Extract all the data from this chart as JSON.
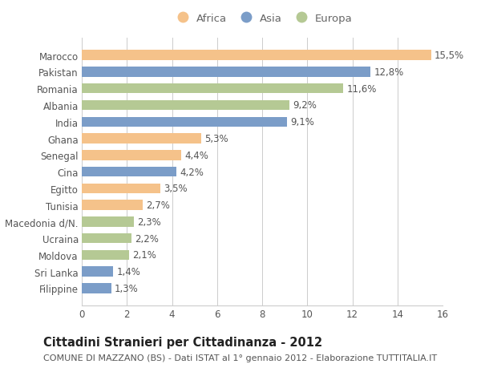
{
  "countries": [
    "Marocco",
    "Pakistan",
    "Romania",
    "Albania",
    "India",
    "Ghana",
    "Senegal",
    "Cina",
    "Egitto",
    "Tunisia",
    "Macedonia d/N.",
    "Ucraina",
    "Moldova",
    "Sri Lanka",
    "Filippine"
  ],
  "values": [
    15.5,
    12.8,
    11.6,
    9.2,
    9.1,
    5.3,
    4.4,
    4.2,
    3.5,
    2.7,
    2.3,
    2.2,
    2.1,
    1.4,
    1.3
  ],
  "continents": [
    "Africa",
    "Asia",
    "Europa",
    "Europa",
    "Asia",
    "Africa",
    "Africa",
    "Asia",
    "Africa",
    "Africa",
    "Europa",
    "Europa",
    "Europa",
    "Asia",
    "Asia"
  ],
  "colors": {
    "Africa": "#F5C28A",
    "Asia": "#7B9DC8",
    "Europa": "#B5C994"
  },
  "legend_order": [
    "Africa",
    "Asia",
    "Europa"
  ],
  "xlim": [
    0,
    16
  ],
  "xticks": [
    0,
    2,
    4,
    6,
    8,
    10,
    12,
    14,
    16
  ],
  "title_bold": "Cittadini Stranieri per Cittadinanza - 2012",
  "subtitle": "COMUNE DI MAZZANO (BS) - Dati ISTAT al 1° gennaio 2012 - Elaborazione TUTTITALIA.IT",
  "background_color": "#ffffff",
  "grid_color": "#cccccc",
  "bar_height": 0.6,
  "title_fontsize": 10.5,
  "subtitle_fontsize": 8,
  "axis_fontsize": 8.5,
  "label_fontsize": 8.5,
  "legend_fontsize": 9.5
}
